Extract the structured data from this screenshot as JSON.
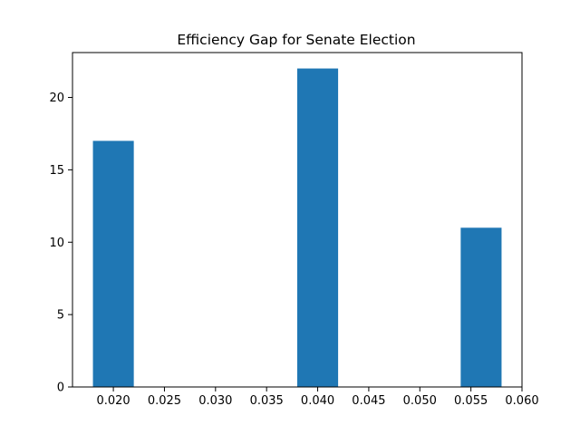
{
  "chart_data": {
    "type": "bar",
    "title": "Efficiency Gap for Senate Election",
    "xlabel": "",
    "ylabel": "",
    "x_ticks": [
      "0.020",
      "0.025",
      "0.030",
      "0.035",
      "0.040",
      "0.045",
      "0.050",
      "0.055",
      "0.060"
    ],
    "y_ticks": [
      "0",
      "5",
      "10",
      "15",
      "20"
    ],
    "xlim": [
      0.016,
      0.06
    ],
    "ylim": [
      0,
      23.1
    ],
    "grid": false,
    "bars": [
      {
        "x0": 0.018,
        "x1": 0.022,
        "value": 17
      },
      {
        "x0": 0.022,
        "x1": 0.026,
        "value": 0
      },
      {
        "x0": 0.026,
        "x1": 0.03,
        "value": 0
      },
      {
        "x0": 0.03,
        "x1": 0.034,
        "value": 0
      },
      {
        "x0": 0.034,
        "x1": 0.038,
        "value": 0
      },
      {
        "x0": 0.038,
        "x1": 0.042,
        "value": 22
      },
      {
        "x0": 0.042,
        "x1": 0.046,
        "value": 0
      },
      {
        "x0": 0.046,
        "x1": 0.05,
        "value": 0
      },
      {
        "x0": 0.05,
        "x1": 0.054,
        "value": 0
      },
      {
        "x0": 0.054,
        "x1": 0.058,
        "value": 11
      }
    ],
    "bar_color": "#1f77b4"
  }
}
